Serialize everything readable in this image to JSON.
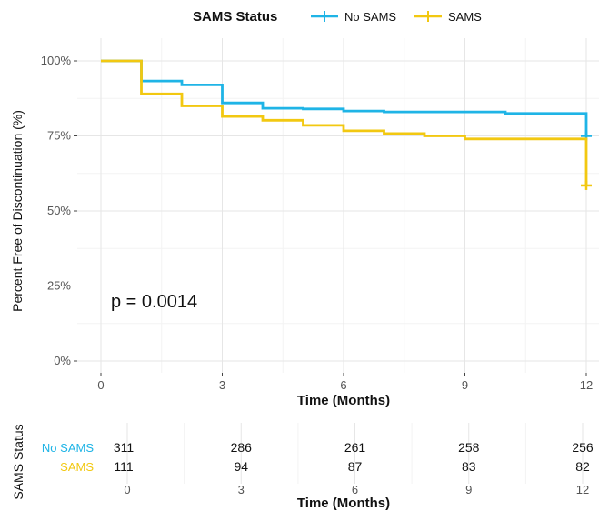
{
  "colors": {
    "no_sams": "#1fb4e6",
    "sams": "#f2c811",
    "grid_major": "#e6e6e6",
    "grid_minor": "#f3f3f3"
  },
  "chart_data": {
    "type": "line",
    "step": true,
    "xlabel": "Time (Months)",
    "ylabel": "Percent Free of Discontinuation (%)",
    "xlim": [
      0,
      12
    ],
    "ylim": [
      0,
      100
    ],
    "x_ticks": [
      "0",
      "3",
      "6",
      "9",
      "12"
    ],
    "y_ticks": [
      "0%",
      "25%",
      "50%",
      "75%",
      "100%"
    ],
    "grid": true,
    "legend": {
      "title": "SAMS Status",
      "position": "top",
      "entries": [
        "No SAMS",
        "SAMS"
      ]
    },
    "annotation": "p = 0.0014",
    "series": [
      {
        "name": "No SAMS",
        "color": "#1fb4e6",
        "points": [
          [
            0,
            100
          ],
          [
            1,
            100
          ],
          [
            1,
            93.3
          ],
          [
            2,
            93.3
          ],
          [
            2,
            92
          ],
          [
            3,
            92
          ],
          [
            3,
            86
          ],
          [
            4,
            86
          ],
          [
            4,
            84.2
          ],
          [
            5,
            84.2
          ],
          [
            5,
            84
          ],
          [
            6,
            84
          ],
          [
            6,
            83.3
          ],
          [
            7,
            83.3
          ],
          [
            7,
            83
          ],
          [
            10,
            83
          ],
          [
            10,
            82.5
          ],
          [
            12,
            82.5
          ],
          [
            12,
            75
          ]
        ],
        "censor": [
          [
            12,
            75
          ]
        ]
      },
      {
        "name": "SAMS",
        "color": "#f2c811",
        "points": [
          [
            0,
            100
          ],
          [
            1,
            100
          ],
          [
            1,
            89
          ],
          [
            2,
            89
          ],
          [
            2,
            85
          ],
          [
            3,
            85
          ],
          [
            3,
            81.5
          ],
          [
            4,
            81.5
          ],
          [
            4,
            80.2
          ],
          [
            5,
            80.2
          ],
          [
            5,
            78.5
          ],
          [
            6,
            78.5
          ],
          [
            6,
            76.7
          ],
          [
            7,
            76.7
          ],
          [
            7,
            75.8
          ],
          [
            8,
            75.8
          ],
          [
            8,
            75
          ],
          [
            9,
            75
          ],
          [
            9,
            74
          ],
          [
            12,
            74
          ],
          [
            12,
            58.5
          ]
        ],
        "censor": [
          [
            12,
            58.5
          ]
        ]
      }
    ],
    "risk_table": {
      "ylabel": "SAMS Status",
      "xlabel": "Time (Months)",
      "x_ticks": [
        "0",
        "3",
        "6",
        "9",
        "12"
      ],
      "rows": [
        {
          "label": "No SAMS",
          "color": "#1fb4e6",
          "values": [
            "311",
            "286",
            "261",
            "258",
            "256"
          ]
        },
        {
          "label": "SAMS",
          "color": "#f2c811",
          "values": [
            "111",
            "94",
            "87",
            "83",
            "82"
          ]
        }
      ]
    }
  }
}
